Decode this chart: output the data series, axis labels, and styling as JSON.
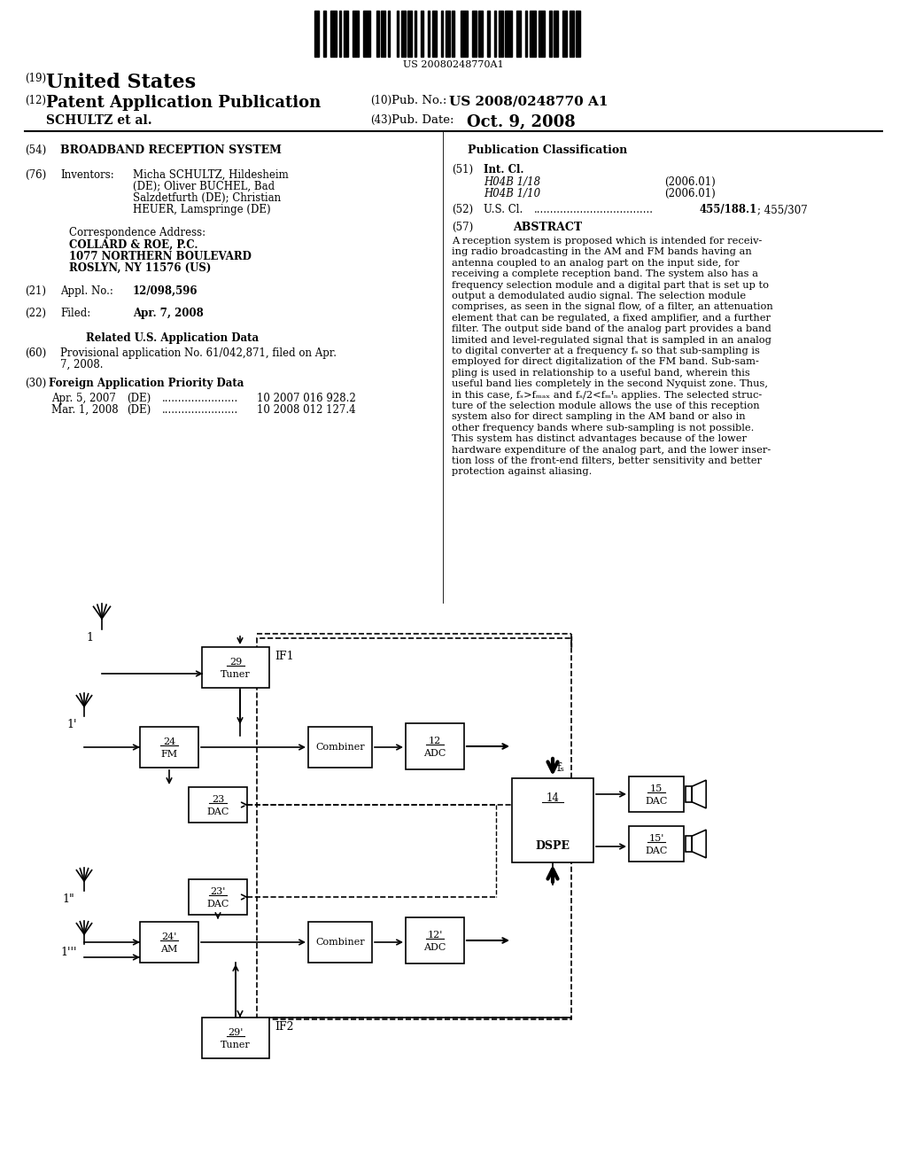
{
  "bg": "#ffffff",
  "barcode_text": "US 20080248770A1",
  "pub_number": "US 2008/0248770 A1",
  "pub_date": "Oct. 9, 2008",
  "title": "BROADBAND RECEPTION SYSTEM",
  "inventors_lines": [
    "Micha SCHULTZ, Hildesheim",
    "(DE); Oliver BUCHEL, Bad",
    "Salzdetfurth (DE); Christian",
    "HEUER, Lamspringe (DE)"
  ],
  "corr_lines": [
    "COLLARD & ROE, P.C.",
    "1077 NORTHERN BOULEVARD",
    "ROSLYN, NY 11576 (US)"
  ],
  "appl_no": "12/098,596",
  "filed_date": "Apr. 7, 2008",
  "provisional_lines": [
    "Provisional application No. 61/042,871, filed on Apr.",
    "7, 2008."
  ],
  "foreign_rows": [
    {
      "date": "Apr. 5, 2007",
      "country": "(DE)",
      "dots": ".......................",
      "number": "10 2007 016 928.2"
    },
    {
      "date": "Mar. 1, 2008",
      "country": "(DE)",
      "dots": ".......................",
      "number": "10 2008 012 127.4"
    }
  ],
  "int_cl_rows": [
    {
      "cls": "H04B 1/18",
      "year": "(2006.01)"
    },
    {
      "cls": "H04B 1/10",
      "year": "(2006.01)"
    }
  ],
  "us_cl_val1": "455/188.1",
  "us_cl_sep": "; 455/307",
  "abstract_lines": [
    "A reception system is proposed which is intended for receiv-",
    "ing radio broadcasting in the AM and FM bands having an",
    "antenna coupled to an analog part on the input side, for",
    "receiving a complete reception band. The system also has a",
    "frequency selection module and a digital part that is set up to",
    "output a demodulated audio signal. The selection module",
    "comprises, as seen in the signal flow, of a filter, an attenuation",
    "element that can be regulated, a fixed amplifier, and a further",
    "filter. The output side band of the analog part provides a band",
    "limited and level-regulated signal that is sampled in an analog",
    "to digital converter at a frequency fₛ so that sub-sampling is",
    "employed for direct digitalization of the FM band. Sub-sam-",
    "pling is used in relationship to a useful band, wherein this",
    "useful band lies completely in the second Nyquist zone. Thus,",
    "in this case, fₛ>fₘₐₓ and fₛ/2<fₘᴵₙ applies. The selected struc-",
    "ture of the selection module allows the use of this reception",
    "system also for direct sampling in the AM band or also in",
    "other frequency bands where sub-sampling is not possible.",
    "This system has distinct advantages because of the lower",
    "hardware expenditure of the analog part, and the lower inser-",
    "tion loss of the front-end filters, better sensitivity and better",
    "protection against aliasing."
  ]
}
